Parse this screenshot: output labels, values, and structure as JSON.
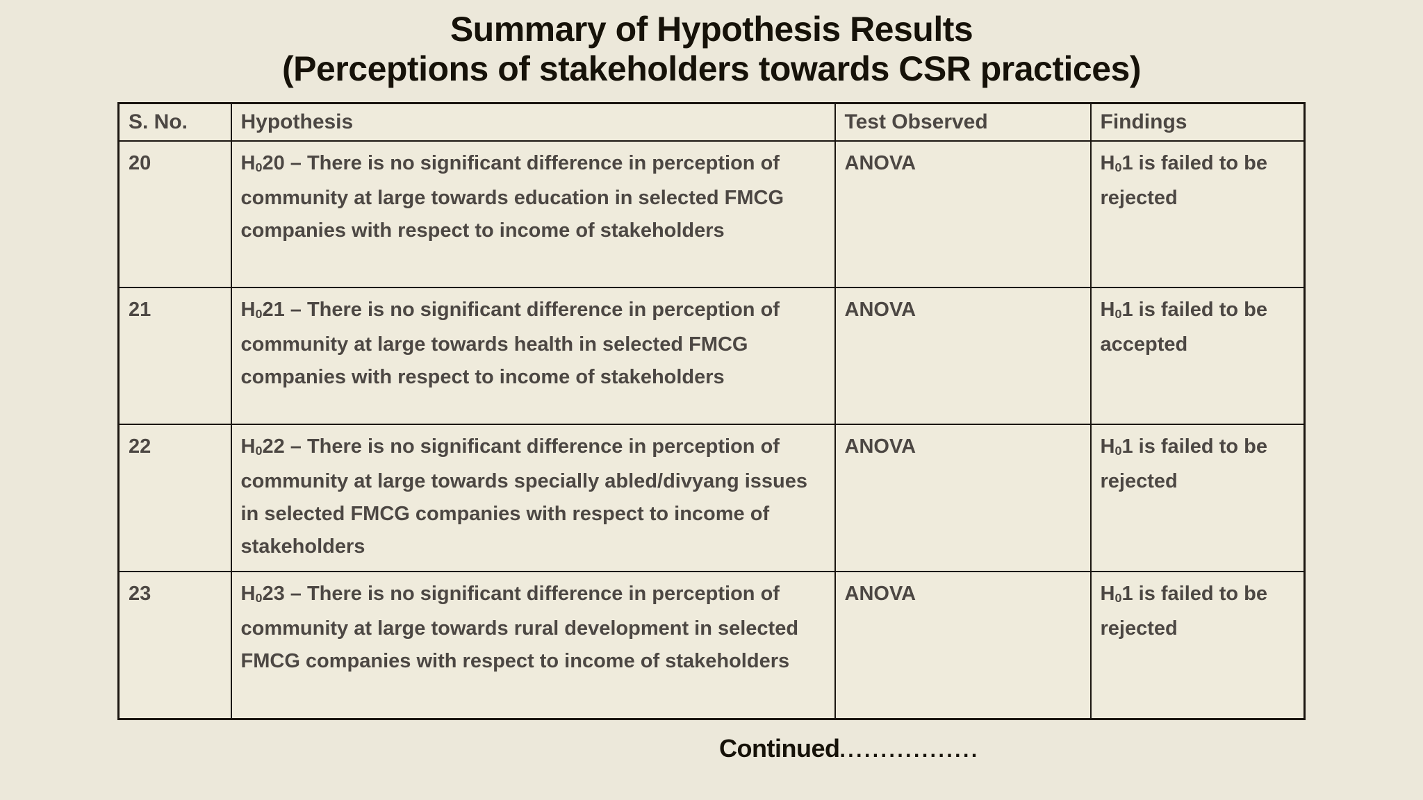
{
  "title": {
    "line1": "Summary of Hypothesis Results",
    "line2": "(Perceptions of stakeholders towards CSR practices)"
  },
  "table": {
    "columns": [
      "S. No.",
      "Hypothesis",
      "Test Observed",
      "Findings"
    ],
    "rows": [
      {
        "sno": "20",
        "hypothesis": {
          "symbol": "H",
          "subscript": "0",
          "number": "20",
          "text": "– There is no significant difference in perception of community at large towards education in selected FMCG companies with respect to income of stakeholders"
        },
        "test_observed": "ANOVA",
        "findings": {
          "symbol": "H",
          "subscript": "0",
          "number": "1",
          "text": "is failed to be rejected"
        }
      },
      {
        "sno": "21",
        "hypothesis": {
          "symbol": "H",
          "subscript": "0",
          "number": "21",
          "text": "– There is no significant difference in perception of community at large towards health in selected FMCG companies with respect to income of stakeholders"
        },
        "test_observed": "ANOVA",
        "findings": {
          "symbol": "H",
          "subscript": "0",
          "number": "1",
          "text": "is failed to be accepted"
        }
      },
      {
        "sno": "22",
        "hypothesis": {
          "symbol": "H",
          "subscript": "0",
          "number": "22",
          "text": "– There is no significant difference in perception of community at large towards specially abled/divyang issues in selected FMCG companies with respect to income of stakeholders"
        },
        "test_observed": "ANOVA",
        "findings": {
          "symbol": "H",
          "subscript": "0",
          "number": "1",
          "text": "is failed to be rejected"
        }
      },
      {
        "sno": "23",
        "hypothesis": {
          "symbol": "H",
          "subscript": "0",
          "number": "23",
          "text": "– There is no significant difference in perception of community at large towards rural development in selected FMCG companies with respect to income of stakeholders"
        },
        "test_observed": "ANOVA",
        "findings": {
          "symbol": "H",
          "subscript": "0",
          "number": "1",
          "text": "is failed to be rejected"
        }
      }
    ]
  },
  "footer": {
    "continued_label": "Continued",
    "continued_dots": "................."
  },
  "colors": {
    "background": "#ece8da",
    "cell_background": "#efebdc",
    "border": "#1a1510",
    "title_text": "#161209",
    "body_text": "#4c4743"
  }
}
